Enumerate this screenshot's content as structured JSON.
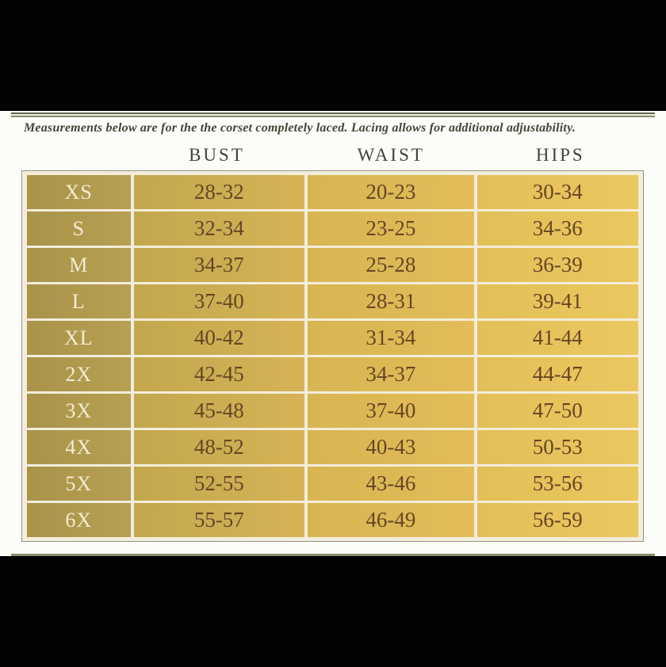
{
  "note_text": "Measurements below are for the the corset completely laced. Lacing allows for additional adjustability.",
  "chart_data": {
    "type": "table",
    "columns": [
      "BUST",
      "WAIST",
      "HIPS"
    ],
    "rows": [
      {
        "size": "XS",
        "bust": "28-32",
        "waist": "20-23",
        "hips": "30-34"
      },
      {
        "size": "S",
        "bust": "32-34",
        "waist": "23-25",
        "hips": "34-36"
      },
      {
        "size": "M",
        "bust": "34-37",
        "waist": "25-28",
        "hips": "36-39"
      },
      {
        "size": "L",
        "bust": "37-40",
        "waist": "28-31",
        "hips": "39-41"
      },
      {
        "size": "XL",
        "bust": "40-42",
        "waist": "31-34",
        "hips": "41-44"
      },
      {
        "size": "2X",
        "bust": "42-45",
        "waist": "34-37",
        "hips": "44-47"
      },
      {
        "size": "3X",
        "bust": "45-48",
        "waist": "37-40",
        "hips": "47-50"
      },
      {
        "size": "4X",
        "bust": "48-52",
        "waist": "40-43",
        "hips": "50-53"
      },
      {
        "size": "5X",
        "bust": "52-55",
        "waist": "43-46",
        "hips": "53-56"
      },
      {
        "size": "6X",
        "bust": "55-57",
        "waist": "46-49",
        "hips": "56-59"
      }
    ]
  },
  "colors": {
    "letterbox": "#030303",
    "background": "#fcfcf9",
    "table_gradient_left": "#a99349",
    "table_gradient_right": "#ebc75f",
    "grid_line_cream": "#f3eddb",
    "outer_outline": "#93938a",
    "value_text": "#654624",
    "size_label_text": "#f3ecd4",
    "header_text": "#43433a",
    "rule_olive": "#8c8c6e"
  }
}
